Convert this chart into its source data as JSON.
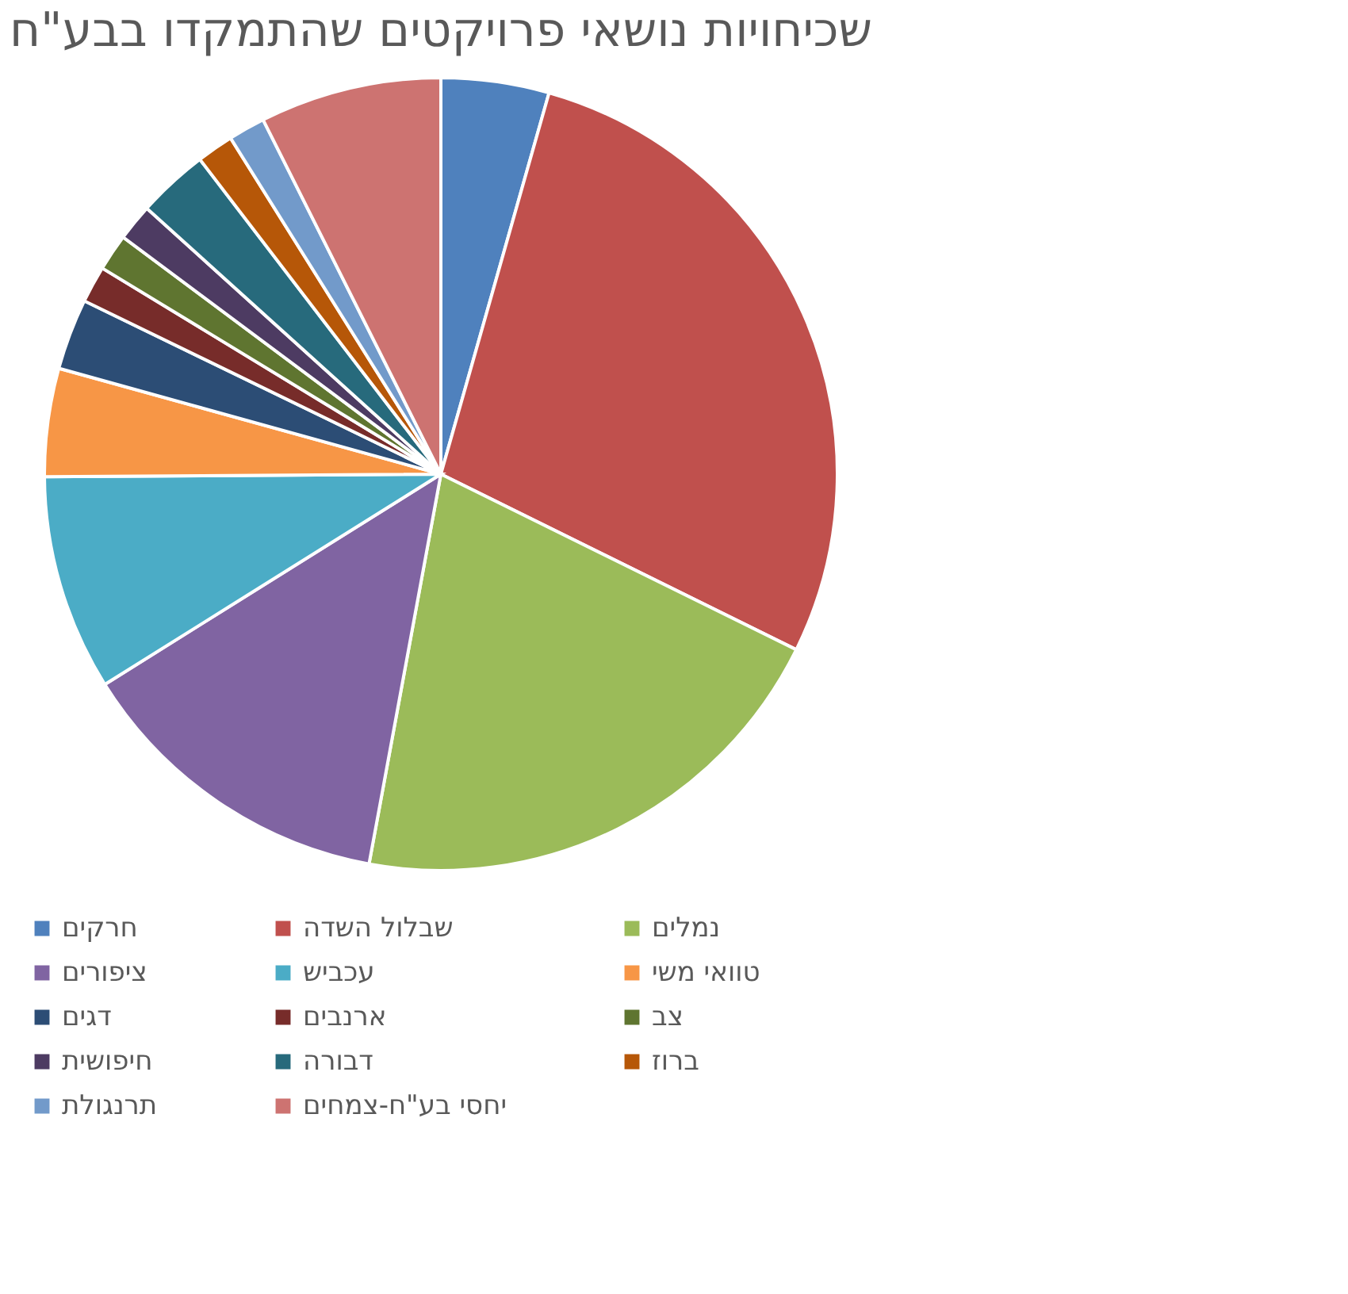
{
  "chart_data": {
    "type": "pie",
    "title": "שכיחויות נושאי פרויקטים שהתמקדו בבע\"ח",
    "categories": [
      "חרקים",
      "שבלול השדה",
      "נמלים",
      "ציפורים",
      "עכביש",
      "טוואי משי",
      "דגים",
      "ארנבים",
      "צב",
      "חיפושית",
      "דבורה",
      "ברוז",
      "תרנגולת",
      "יחסי בע\"ח-צמחים"
    ],
    "values": [
      4.4,
      27.9,
      20.6,
      13.2,
      8.8,
      4.4,
      2.9,
      1.5,
      1.5,
      1.5,
      2.9,
      1.5,
      1.5,
      7.4
    ],
    "colors": [
      "#4f81bd",
      "#c0504d",
      "#9bbb59",
      "#8064a2",
      "#4bacc6",
      "#f79646",
      "#2c4d75",
      "#772c2a",
      "#5f7530",
      "#4d3b62",
      "#276a7c",
      "#b65708",
      "#729aca",
      "#cd7371"
    ],
    "legend": "bottom"
  }
}
